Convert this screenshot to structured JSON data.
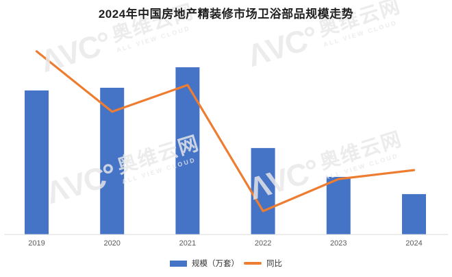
{
  "header": {
    "title": "2024年中国房地产精装修市场卫浴部品规模走势"
  },
  "watermark": {
    "logo_text": "ΛVC°",
    "brand_cn": "奥维云网",
    "brand_en": "ALL VIEW CLOUD",
    "color": "#e9e9e9"
  },
  "axis": {
    "baseline_color": "#d9d9d9",
    "label_color": "#595959"
  },
  "legend": {
    "position": "bottom"
  },
  "chart_data": {
    "type": "combo-bar-line",
    "title": "2024年中国房地产精装修市场卫浴部品规模走势",
    "categories": [
      "2019",
      "2020",
      "2021",
      "2022",
      "2023",
      "2024"
    ],
    "series": [
      {
        "name": "规模（万套）",
        "chart_type": "bar",
        "color": "#4574c7",
        "values_est_pct_of_max": [
          86,
          88,
          100,
          52,
          34,
          24
        ],
        "values_est_frac_of_plot_height": [
          0.745,
          0.759,
          0.865,
          0.447,
          0.298,
          0.209
        ]
      },
      {
        "name": "同比",
        "chart_type": "line",
        "color": "#ed7d31",
        "values_est_frac_of_plot_height": [
          0.947,
          0.635,
          0.773,
          0.121,
          0.287,
          0.333
        ]
      }
    ],
    "xlabel": "",
    "ylabel": "",
    "y_axis_labels_visible": false,
    "gridlines": false,
    "legend_position": "bottom"
  }
}
